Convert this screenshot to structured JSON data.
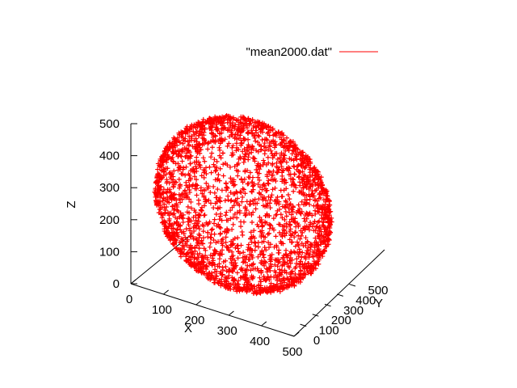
{
  "chart_data": {
    "type": "scatter",
    "title": "",
    "legend": {
      "placement": "top-right",
      "entries": [
        "\"mean2000.dat\""
      ]
    },
    "series": [
      {
        "name": "\"mean2000.dat\"",
        "color": "#ff0000",
        "shape": "sphere",
        "center": {
          "x": 250,
          "y": 250,
          "z": 250
        },
        "radius": 250
      }
    ],
    "xlabel": "X",
    "ylabel": "Y",
    "zlabel": "Z",
    "xlim": [
      0,
      500
    ],
    "ylim": [
      0,
      500
    ],
    "zlim": [
      0,
      500
    ],
    "x_ticks": [
      "0",
      "100",
      "200",
      "300",
      "400",
      "500"
    ],
    "y_ticks": [
      "0",
      "100",
      "200",
      "300",
      "400",
      "500"
    ],
    "z_ticks": [
      "0",
      "100",
      "200",
      "300",
      "400",
      "500"
    ],
    "grid": false
  }
}
